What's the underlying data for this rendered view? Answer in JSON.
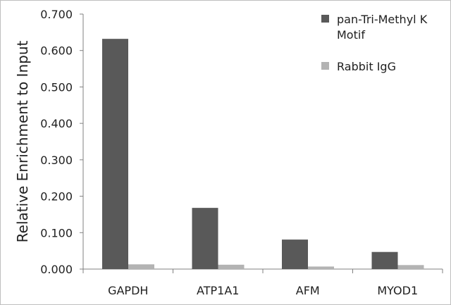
{
  "chart_data": {
    "type": "bar",
    "title": "",
    "xlabel": "",
    "ylabel": "Relative Enrichment to Input",
    "ylim": [
      0,
      0.7
    ],
    "yticks": [
      "0.000",
      "0.100",
      "0.200",
      "0.300",
      "0.400",
      "0.500",
      "0.600",
      "0.700"
    ],
    "categories": [
      "GAPDH",
      "ATP1A1",
      "AFM",
      "MYOD1"
    ],
    "series": [
      {
        "name": "pan-Tri-Methyl K Motif",
        "name_lines": [
          "pan-Tri-Methyl K",
          "Motif"
        ],
        "color": "#595959",
        "values": [
          0.632,
          0.168,
          0.081,
          0.047
        ]
      },
      {
        "name": "Rabbit IgG",
        "name_lines": [
          "Rabbit IgG"
        ],
        "color": "#b3b3b3",
        "values": [
          0.013,
          0.012,
          0.007,
          0.011
        ]
      }
    ],
    "grid": false,
    "legend_position": "top-right"
  }
}
